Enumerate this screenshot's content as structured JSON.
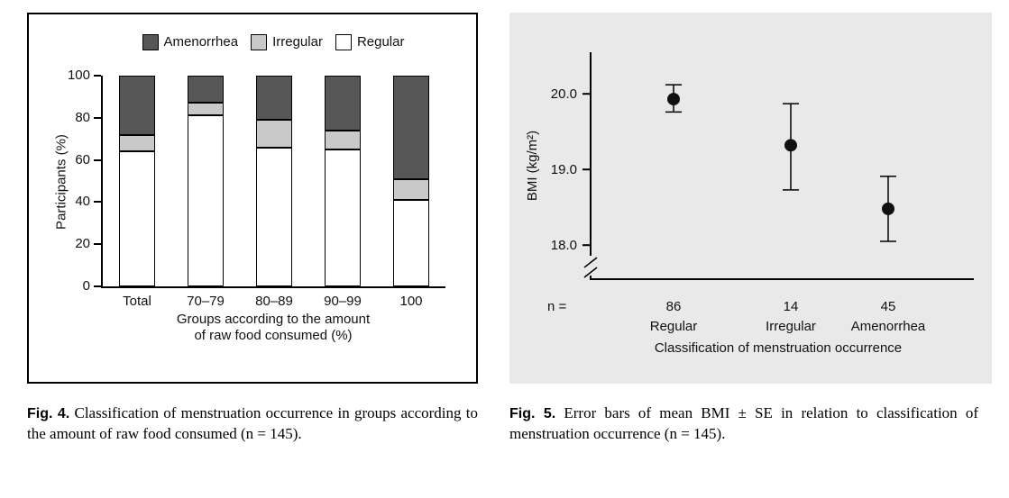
{
  "page": {
    "background": "#ffffff"
  },
  "fig4": {
    "caption_label": "Fig. 4.",
    "caption_text": "Classification of menstruation occurrence in groups according to the amount of raw food consumed (n = 145).",
    "chart": {
      "type": "bar",
      "stacked": true,
      "ylabel": "Participants (%)",
      "xlabel_lines": [
        "Groups according to the amount",
        "of raw food consumed (%)"
      ],
      "yticks": [
        0,
        20,
        40,
        60,
        80,
        100
      ],
      "ylim": [
        0,
        100
      ],
      "categories": [
        "Total",
        "70–79",
        "80–89",
        "90–99",
        "100"
      ],
      "series": [
        {
          "name": "Regular",
          "color": "#ffffff",
          "values": [
            64,
            81,
            66,
            65,
            41
          ]
        },
        {
          "name": "Irregular",
          "color": "#c9c9c9",
          "values": [
            8,
            6,
            13,
            9,
            10
          ]
        },
        {
          "name": "Amenorrhea",
          "color": "#575757",
          "values": [
            28,
            13,
            21,
            26,
            49
          ]
        }
      ],
      "legend_order": [
        "Amenorrhea",
        "Irregular",
        "Regular"
      ]
    }
  },
  "fig5": {
    "caption_label": "Fig. 5.",
    "caption_text": "Error bars of mean BMI ± SE in relation to classification of menstruation occurrence (n = 145).",
    "chart": {
      "type": "scatter",
      "subtype": "errorbar",
      "background": "#e9e9e9",
      "marker_color": "#111111",
      "ylabel": "BMI (kg/m²)",
      "xlabel": "Classification of menstruation occurrence",
      "n_label": "n =",
      "yticks": [
        18.0,
        19.0,
        20.0
      ],
      "ylim": [
        17.55,
        20.55
      ],
      "axis_break": true,
      "points": [
        {
          "category": "Regular",
          "n": 86,
          "mean": 19.93,
          "upper": 20.12,
          "lower": 19.76
        },
        {
          "category": "Irregular",
          "n": 14,
          "mean": 19.32,
          "upper": 19.87,
          "lower": 18.73
        },
        {
          "category": "Amenorrhea",
          "n": 45,
          "mean": 18.48,
          "upper": 18.91,
          "lower": 18.05
        }
      ]
    }
  }
}
